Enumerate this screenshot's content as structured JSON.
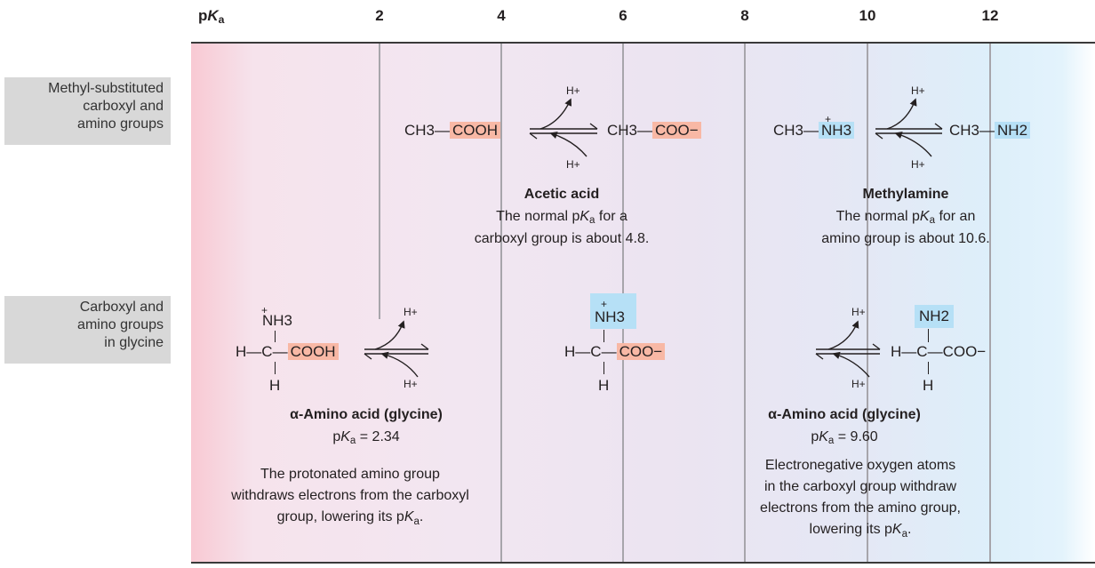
{
  "axis": {
    "label_prefix": "p",
    "label_var": "K",
    "label_sub": "a",
    "ticks": [
      "2",
      "4",
      "6",
      "8",
      "10",
      "12"
    ]
  },
  "row_labels": {
    "top": "Methyl-substituted\ncarboxyl and\namino groups",
    "bottom": "Carboxyl and\namino groups\nin glycine"
  },
  "colors": {
    "acid_highlight": "#f8b8a5",
    "base_highlight": "#b6e0f6",
    "left_background": "#f8c9d3",
    "right_background": "#ddeffa"
  },
  "proton": "H+",
  "acetic": {
    "left_prefix": "CH3—",
    "left_group": "COOH",
    "right_prefix": "CH3—",
    "right_group": "COO−",
    "name": "Acetic acid",
    "desc1_pre": "The normal p",
    "desc1_post": " for a",
    "desc2": "carboxyl group is about 4.8."
  },
  "methylamine": {
    "left_prefix": "CH3—",
    "left_group": "NH3",
    "left_charge": "+",
    "right_prefix": "CH3—",
    "right_group": "NH2",
    "name": "Methylamine",
    "desc1_pre": "The normal p",
    "desc1_post": " for an",
    "desc2": "amino group is about 10.6."
  },
  "glycine_left": {
    "top_group": "NH3",
    "charge": "+",
    "h_left": "H—",
    "carbon": "C",
    "group": "COOH",
    "bottom_h": "H",
    "name": "α-Amino acid (glycine)",
    "pka_value": " = 2.34",
    "note": "The protonated amino group\nwithdraws electrons from the carboxyl\ngroup, lowering its p",
    "note_end": "."
  },
  "glycine_mid": {
    "top_group": "NH3",
    "charge": "+",
    "h_left": "H—",
    "carbon": "C",
    "group": "COO−",
    "bottom_h": "H"
  },
  "glycine_right": {
    "top_group": "NH2",
    "h_left": "H—",
    "carbon": "C",
    "group": "—COO−",
    "bottom_h": "H",
    "name": "α-Amino acid (glycine)",
    "pka_value": " = 9.60",
    "note": "Electronegative oxygen atoms\nin the carboxyl group withdraw\nelectrons from the amino group,\nlowering its p",
    "note_end": "."
  }
}
